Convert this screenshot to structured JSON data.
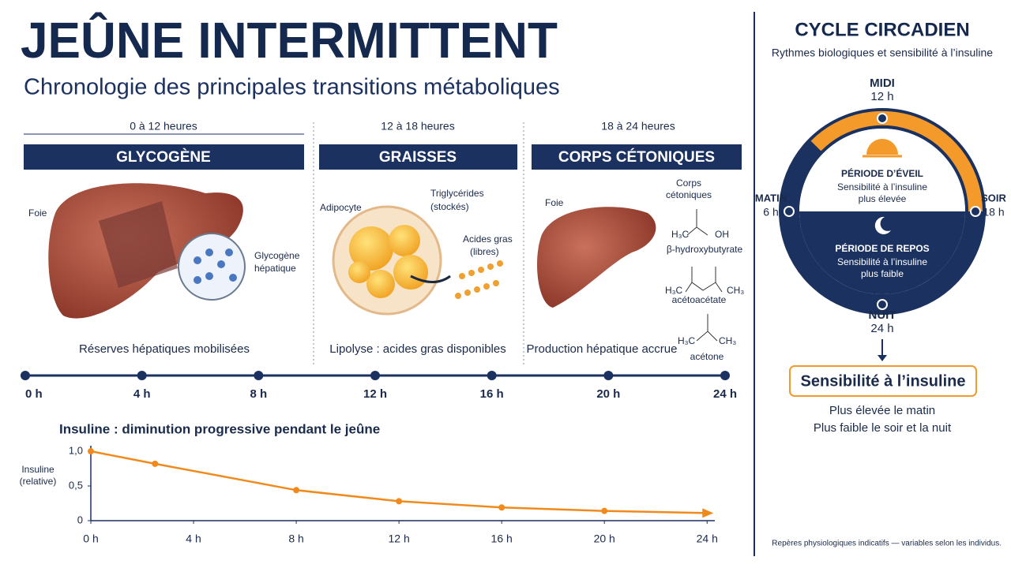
{
  "header": {
    "title": "JEÛNE INTERMITTENT",
    "subtitle": "Chronologie des principales transitions métaboliques"
  },
  "phases": [
    {
      "range": "0 à 12 heures",
      "title": "GLYCOGÈNE",
      "labels": [
        "Foie",
        "Glycogène",
        "hépatique"
      ],
      "caption": "Réserves hépatiques mobilisées"
    },
    {
      "range": "12 à 18 heures",
      "title": "GRAISSES",
      "labels": [
        "Adipocyte",
        "Triglycérides",
        "(stockés)",
        "Acides gras",
        "(libres)"
      ],
      "caption": "Lipolyse : acides gras disponibles"
    },
    {
      "range": "18 à 24 heures",
      "title": "CORPS CÉTONIQUES",
      "labels": [
        "Foie",
        "Corps",
        "cétoniques",
        "β-hydroxybutyrate",
        "acétoacétate",
        "acétone"
      ],
      "formulas": [
        "H₃C",
        "OH",
        "CH₃"
      ],
      "caption": "Production hépatique accrue"
    }
  ],
  "timeline": {
    "ticks": [
      "0 h",
      "4 h",
      "8 h",
      "12 h",
      "16 h",
      "20 h",
      "24 h"
    ]
  },
  "chart_data": {
    "type": "line",
    "title": "Insuline : diminution progressive pendant le  jeûne",
    "y_label": [
      "Insuline",
      "(relative)"
    ],
    "x": [
      0,
      2.5,
      8,
      12,
      16,
      20,
      24
    ],
    "series": [
      {
        "name": "Insuline",
        "color": "#f08a1c",
        "values": [
          1.0,
          0.82,
          0.44,
          0.28,
          0.19,
          0.14,
          0.11
        ]
      }
    ],
    "xlim": [
      0,
      24.3
    ],
    "ylim": [
      0,
      1.08
    ],
    "xticks": [
      {
        "value": 0,
        "label": "0 h"
      },
      {
        "value": 4,
        "label": "4 h"
      },
      {
        "value": 8,
        "label": "8 h"
      },
      {
        "value": 12,
        "label": "12 h"
      },
      {
        "value": 16,
        "label": "16 h"
      },
      {
        "value": 20,
        "label": "20 h"
      },
      {
        "value": 24,
        "label": "24 h"
      }
    ],
    "yticks": [
      0,
      {
        "value": 0.5,
        "label": "0,5"
      },
      {
        "value": 1,
        "label": "1,0"
      }
    ]
  },
  "circadian": {
    "title": "CYCLE CIRCADIEN",
    "subtitle": "Rythmes biologiques et sensibilité à l’insuline",
    "noon": {
      "name": "MIDI",
      "time": "12 h"
    },
    "morning": {
      "name": "MATIN",
      "time": "6 h"
    },
    "evening": {
      "name": "SOIR",
      "time": "18 h"
    },
    "night": {
      "name": "NUIT",
      "time": "24 h"
    },
    "day": {
      "title": "PÉRIODE D’ÉVEIL",
      "lines": [
        "Sensibilité à l’insuline",
        "plus élevée"
      ]
    },
    "rest": {
      "title": "PÉRIODE DE REPOS",
      "lines": [
        "Sensibilité à l’insuline",
        "plus faible"
      ]
    },
    "insulin_box": "Sensibilité à l’insuline",
    "notes": [
      "Plus élevée le matin",
      "Plus faible le soir et la nuit"
    ]
  },
  "footer": "Repères physiologiques indicatifs — variables selon les individus."
}
